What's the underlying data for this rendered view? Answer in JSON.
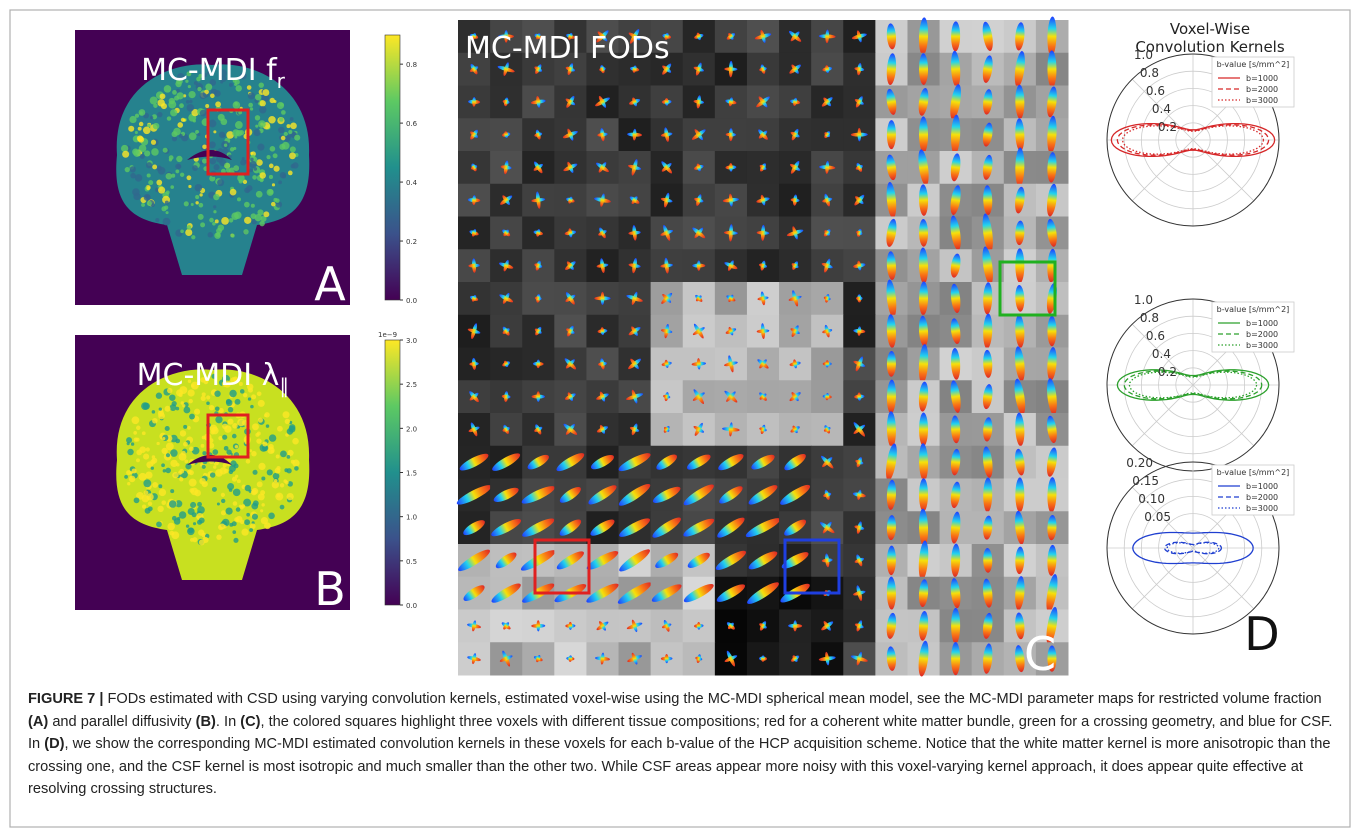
{
  "panel_a": {
    "title": "MC-MDI f",
    "subscript": "r",
    "letter": "A",
    "colorbar_ticks": [
      "0.0",
      "0.2",
      "0.4",
      "0.6",
      "0.8"
    ]
  },
  "panel_b": {
    "title": "MC-MDI λ",
    "subscript": "∥",
    "letter": "B",
    "colorbar_exponent": "1e−9",
    "colorbar_ticks": [
      "0.0",
      "0.5",
      "1.0",
      "1.5",
      "2.0",
      "2.5",
      "3.0"
    ]
  },
  "panel_c": {
    "title": "MC-MDI FODs",
    "letter": "C"
  },
  "panel_d": {
    "title_lines": [
      "Voxel-Wise",
      "Convolution Kernels"
    ],
    "letter": "D",
    "plots": [
      {
        "radial_ticks": [
          "1.0",
          "0.8",
          "0.6",
          "0.4",
          "0.2"
        ],
        "legend_title": "b-value [s/mm^2]",
        "legend": [
          "b=1000",
          "b=2000",
          "b=3000"
        ]
      },
      {
        "radial_ticks": [
          "1.0",
          "0.8",
          "0.6",
          "0.4",
          "0.2"
        ],
        "legend_title": "b-value [s/mm^2]",
        "legend": [
          "b=1000",
          "b=2000",
          "b=3000"
        ]
      },
      {
        "radial_ticks": [
          "0.20",
          "0.15",
          "0.10",
          "0.05"
        ],
        "legend_title": "b-value [s/mm^2]",
        "legend": [
          "b=1000",
          "b=2000",
          "b=3000"
        ]
      }
    ]
  },
  "caption": {
    "parts": [
      {
        "text": "FIGURE 7 |",
        "bold": true
      },
      {
        "text": " FODs estimated with CSD using varying convolution kernels, estimated voxel-wise using the MC-MDI spherical mean model, see the MC-MDI parameter maps for restricted volume fraction ",
        "bold": false
      },
      {
        "text": "(A)",
        "bold": true
      },
      {
        "text": " and parallel diffusivity ",
        "bold": false
      },
      {
        "text": "(B)",
        "bold": true
      },
      {
        "text": ". In ",
        "bold": false
      },
      {
        "text": "(C)",
        "bold": true
      },
      {
        "text": ", the colored squares highlight three voxels with different tissue compositions; red for a coherent white matter bundle, green for a crossing geometry, and blue for CSF. In ",
        "bold": false
      },
      {
        "text": "(D)",
        "bold": true
      },
      {
        "text": ", we show the corresponding MC-MDI estimated convolution kernels in these voxels for each b-value of the HCP acquisition scheme. Notice that the white matter kernel is more anisotropic than the crossing one, and the CSF kernel is most isotropic and much smaller than the other two. While CSF areas appear more noisy with this voxel-varying kernel approach, it does appear quite effective at resolving crossing structures.",
        "bold": false
      }
    ]
  }
}
